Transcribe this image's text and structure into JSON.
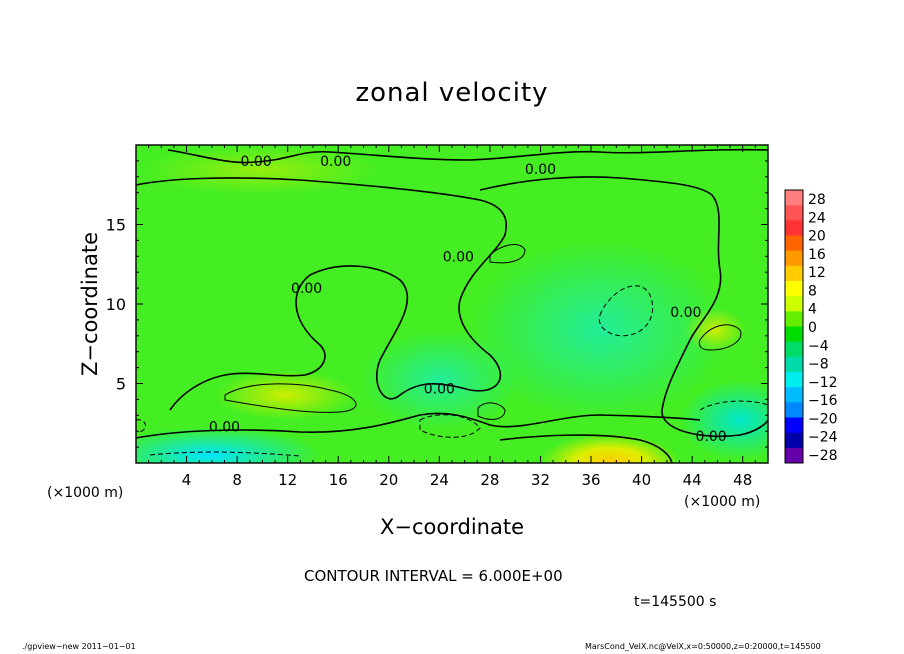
{
  "chart_data": {
    "type": "heatmap",
    "title": "zonal velocity",
    "xlabel": "X−coordinate",
    "ylabel": "Z−coordinate",
    "x_unit_left": "(×1000 m)",
    "x_unit_right": "(×1000 m)",
    "x_ticks": [
      4,
      8,
      12,
      16,
      20,
      24,
      28,
      32,
      36,
      40,
      44,
      48
    ],
    "y_ticks": [
      5,
      10,
      15
    ],
    "xlim": [
      0,
      50
    ],
    "ylim": [
      0,
      20
    ],
    "colorbar": {
      "labels": [
        "28",
        "24",
        "20",
        "16",
        "12",
        "8",
        "4",
        "0",
        "−4",
        "−8",
        "−12",
        "−16",
        "−20",
        "−24",
        "−28"
      ],
      "colors": [
        "#ff7f7f",
        "#ff5555",
        "#ff3333",
        "#ff6600",
        "#ff9900",
        "#ffcc00",
        "#ffff00",
        "#ccff00",
        "#66ee00",
        "#00dd00",
        "#00dd66",
        "#00ddaa",
        "#00eeee",
        "#00bbff",
        "#0088ff",
        "#0000ff",
        "#0000aa",
        "#6600aa"
      ]
    },
    "contour_labels": [
      {
        "text": "0.00",
        "x": 9.5,
        "y": 19.0
      },
      {
        "text": "0.00",
        "x": 15.8,
        "y": 19.0
      },
      {
        "text": "0.00",
        "x": 32.0,
        "y": 18.5
      },
      {
        "text": "0.00",
        "x": 25.5,
        "y": 13.0
      },
      {
        "text": "0.00",
        "x": 13.5,
        "y": 11.0
      },
      {
        "text": "0.00",
        "x": 24.0,
        "y": 4.7
      },
      {
        "text": "0.00",
        "x": 43.5,
        "y": 9.5
      },
      {
        "text": "0.00",
        "x": 7.0,
        "y": 2.3
      },
      {
        "text": "0.00",
        "x": 45.5,
        "y": 1.7
      }
    ]
  },
  "notes": {
    "contour_interval": "CONTOUR INTERVAL = 6.000E+00",
    "time": "t=145500 s"
  },
  "footer": {
    "left": "./gpview−new   2011−01−01",
    "right": "MarsCond_VelX.nc@VelX,x=0:50000,z=0:20000,t=145500"
  }
}
